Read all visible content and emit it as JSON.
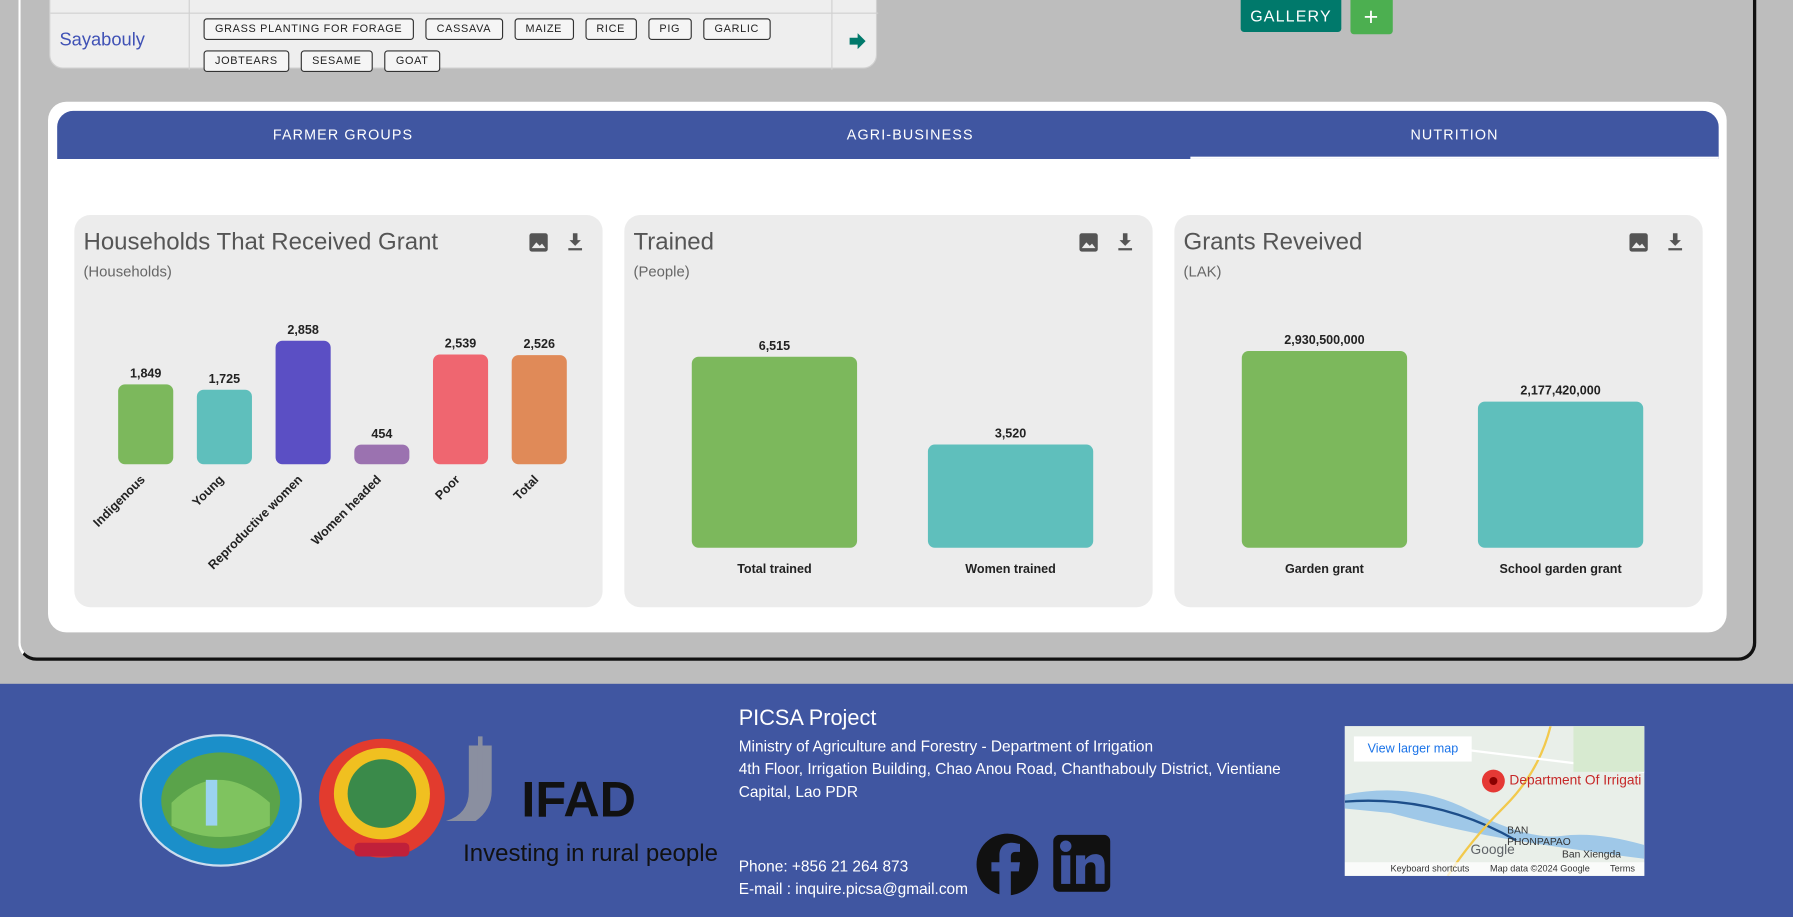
{
  "table": {
    "rows": [
      {
        "province": "Sayabouly",
        "tags": [
          "GRASS PLANTING FOR FORAGE",
          "CASSAVA",
          "MAIZE",
          "RICE",
          "PIG",
          "GARLIC",
          "JOBTEARS",
          "SESAME",
          "GOAT"
        ]
      }
    ]
  },
  "buttons": {
    "gallery": "GALLERY",
    "add": "+"
  },
  "tabs": [
    "FARMER GROUPS",
    "AGRI-BUSINESS",
    "NUTRITION"
  ],
  "charts": [
    {
      "type": "bar",
      "title": "Households That Received Grant",
      "subtitle": "(Households)",
      "categories": [
        "Indigenous",
        "Young",
        "Reproductive women",
        "Women headed",
        "Poor",
        "Total"
      ],
      "values": [
        1849,
        1725,
        2858,
        454,
        2539,
        2526
      ],
      "value_labels": [
        "1,849",
        "1,725",
        "2,858",
        "454",
        "2,539",
        "2,526"
      ],
      "colors": [
        "#7cb85c",
        "#5fbfbc",
        "#5b4fc4",
        "#9b72b0",
        "#ef6670",
        "#e08a58"
      ]
    },
    {
      "type": "bar",
      "title": "Trained",
      "subtitle": "(People)",
      "categories": [
        "Total trained",
        "Women trained"
      ],
      "values": [
        6515,
        3520
      ],
      "value_labels": [
        "6,515",
        "3,520"
      ],
      "colors": [
        "#7cb85c",
        "#5fbfbc"
      ]
    },
    {
      "type": "bar",
      "title": "Grants Reveived",
      "subtitle": "(LAK)",
      "categories": [
        "Garden grant",
        "School garden grant"
      ],
      "values": [
        2930500000,
        2177420000
      ],
      "value_labels": [
        "2,930,500,000",
        "2,177,420,000"
      ],
      "colors": [
        "#7cb85c",
        "#5fbfbc"
      ]
    }
  ],
  "footer": {
    "logo_text": "IFAD",
    "logo_tagline": "Investing in rural people",
    "project": "PICSA Project",
    "ministry": "Ministry of Agriculture and Forestry - Department of Irrigation",
    "address": "4th Floor, Irrigation Building, Chao Anou Road, Chanthabouly District, Vientiane Capital, Lao PDR",
    "phone": "Phone: +856 21 264 873",
    "email": "E-mail : inquire.picsa@gmail.com",
    "map": {
      "link": "View larger map",
      "place": "Department Of Irrigati",
      "area": "BAN PHONPAPAO",
      "village": "Ban Xiengda",
      "brand": "Google",
      "shortcuts": "Keyboard shortcuts",
      "attribution": "Map data ©2024 Google",
      "terms": "Terms"
    }
  }
}
